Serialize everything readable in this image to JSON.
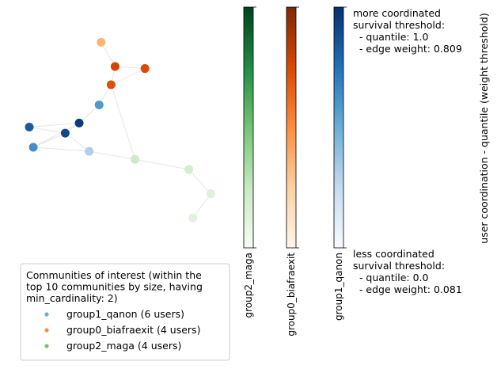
{
  "chart_data": {
    "type": "scatter",
    "subtype": "network-graph",
    "nodes": [
      {
        "id": 0,
        "x": 0.38,
        "y": 0.92,
        "group": "group0_biafraexit",
        "weight": 0.3
      },
      {
        "id": 1,
        "x": 0.45,
        "y": 0.8,
        "group": "group0_biafraexit",
        "weight": 0.75
      },
      {
        "id": 2,
        "x": 0.6,
        "y": 0.79,
        "group": "group0_biafraexit",
        "weight": 0.72
      },
      {
        "id": 3,
        "x": 0.43,
        "y": 0.71,
        "group": "group0_biafraexit",
        "weight": 0.7
      },
      {
        "id": 4,
        "x": 0.37,
        "y": 0.61,
        "group": "group1_qanon",
        "weight": 0.55
      },
      {
        "id": 5,
        "x": 0.27,
        "y": 0.52,
        "group": "group1_qanon",
        "weight": 0.95
      },
      {
        "id": 6,
        "x": 0.02,
        "y": 0.5,
        "group": "group1_qanon",
        "weight": 0.82
      },
      {
        "id": 7,
        "x": 0.2,
        "y": 0.47,
        "group": "group1_qanon",
        "weight": 0.9
      },
      {
        "id": 8,
        "x": 0.04,
        "y": 0.4,
        "group": "group1_qanon",
        "weight": 0.6
      },
      {
        "id": 9,
        "x": 0.32,
        "y": 0.38,
        "group": "group1_qanon",
        "weight": 0.25
      },
      {
        "id": 10,
        "x": 0.55,
        "y": 0.34,
        "group": "group2_maga",
        "weight": 0.15
      },
      {
        "id": 11,
        "x": 0.82,
        "y": 0.29,
        "group": "group2_maga",
        "weight": 0.12
      },
      {
        "id": 12,
        "x": 0.93,
        "y": 0.17,
        "group": "group2_maga",
        "weight": 0.06
      },
      {
        "id": 13,
        "x": 0.84,
        "y": 0.05,
        "group": "group2_maga",
        "weight": 0.04
      }
    ],
    "edges": [
      [
        0,
        1
      ],
      [
        1,
        2
      ],
      [
        1,
        3
      ],
      [
        2,
        3
      ],
      [
        3,
        4
      ],
      [
        4,
        5
      ],
      [
        5,
        6
      ],
      [
        5,
        7
      ],
      [
        6,
        7
      ],
      [
        5,
        8
      ],
      [
        7,
        8
      ],
      [
        7,
        9
      ],
      [
        8,
        9
      ],
      [
        9,
        10
      ],
      [
        10,
        11
      ],
      [
        11,
        12
      ],
      [
        12,
        13
      ],
      [
        10,
        3
      ]
    ],
    "xlim": [
      0,
      1
    ],
    "ylim": [
      0,
      1
    ],
    "colormaps": [
      {
        "label": "group2_maga",
        "name": "Greens",
        "stops": [
          "#f7fcf5",
          "#c7e9c0",
          "#74c476",
          "#238b45",
          "#00441b"
        ]
      },
      {
        "label": "group0_biafraexit",
        "name": "Oranges",
        "stops": [
          "#fff5eb",
          "#fdd0a2",
          "#fd8d3c",
          "#d94801",
          "#7f2704"
        ]
      },
      {
        "label": "group1_qanon",
        "name": "Blues",
        "stops": [
          "#f7fbff",
          "#c6dbef",
          "#6baed6",
          "#2171b5",
          "#08306b"
        ]
      }
    ],
    "colorbar_text": {
      "top": "more coordinated\nsurvival threshold:\n  - quantile: 1.0\n  - edge weight: 0.809",
      "bottom": "less coordinated\nsurvival threshold:\n  - quantile: 0.0\n  - edge weight: 0.081",
      "axis_label": "user coordination - quantile (weight threshold)"
    },
    "legend": {
      "placement": "bottom-left",
      "title": "Communities of interest (within the\ntop 10 communities by size, having\nmin_cardinality: 2)",
      "entries": [
        {
          "label": "group1_qanon (6 users)",
          "color": "#6baed6"
        },
        {
          "label": "group0_biafraexit (4 users)",
          "color": "#fd8d3c"
        },
        {
          "label": "group2_maga (4 users)",
          "color": "#74c476"
        }
      ]
    },
    "edge_color": "#e6e6e6"
  }
}
